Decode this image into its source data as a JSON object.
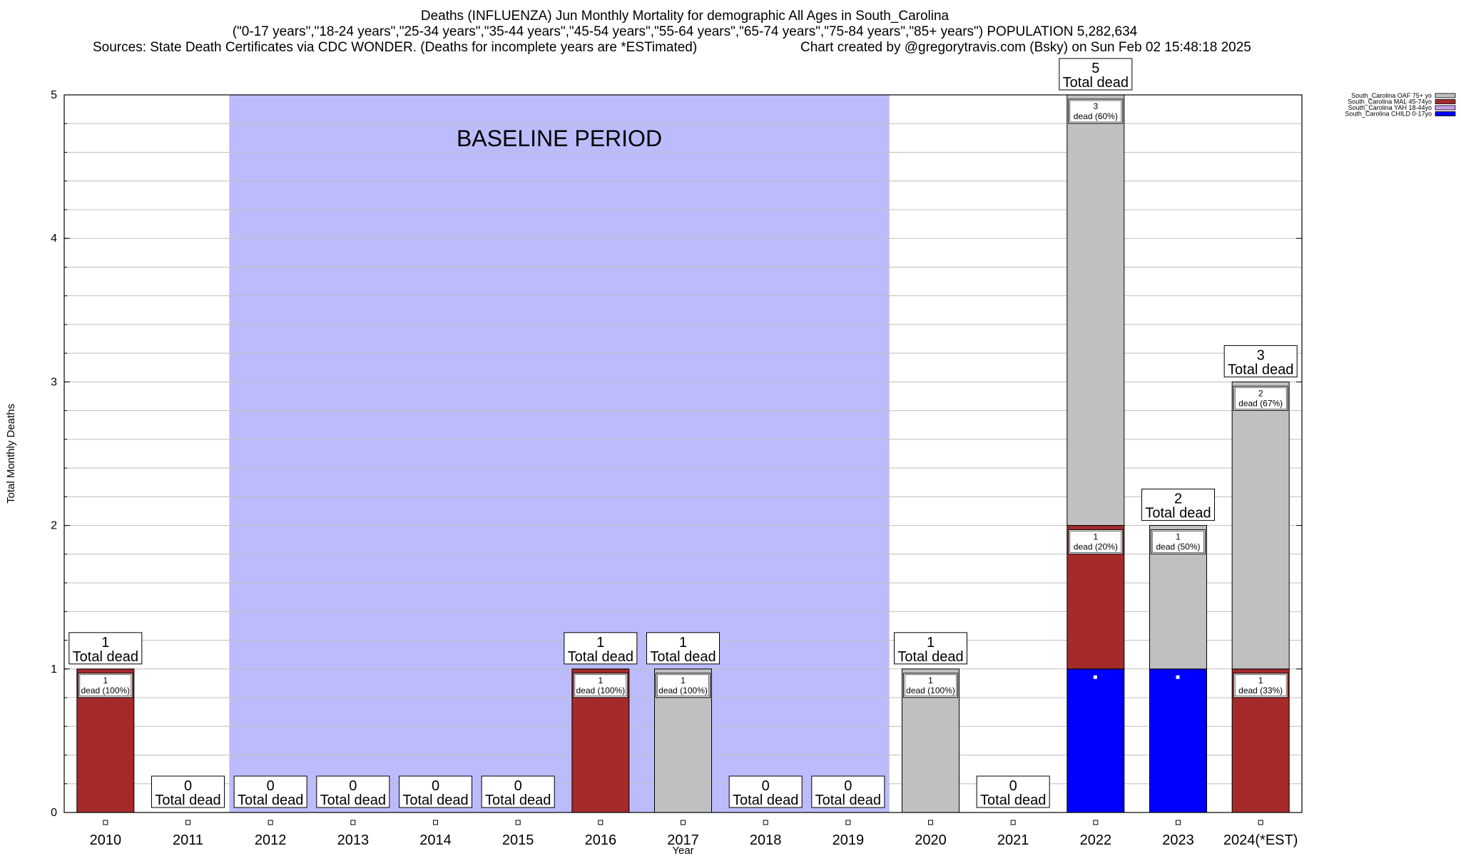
{
  "header": {
    "title": "Deaths (INFLUENZA) Jun Monthly Mortality for demographic All Ages in South_Carolina",
    "subtitle": "(\"0-17 years\",\"18-24 years\",\"25-34 years\",\"35-44 years\",\"45-54 years\",\"55-64 years\",\"65-74 years\",\"75-84 years\",\"85+ years\") POPULATION 5,282,634",
    "sources": "Sources: State Death Certificates via CDC WONDER. (Deaths for incomplete years are *ESTimated)",
    "credit": "Chart created by @gregorytravis.com (Bsky) on Sun Feb 02 15:48:18 2025"
  },
  "chart_data": {
    "type": "bar",
    "stacked": true,
    "categories": [
      "2010",
      "2011",
      "2012",
      "2013",
      "2014",
      "2015",
      "2016",
      "2017",
      "2018",
      "2019",
      "2020",
      "2021",
      "2022",
      "2023",
      "2024(*EST)"
    ],
    "series": [
      {
        "name": "South_Carolina CHILD 0-17yo",
        "color": "#0000ff",
        "values": [
          0,
          0,
          0,
          0,
          0,
          0,
          0,
          0,
          0,
          0,
          0,
          0,
          1,
          1,
          0
        ]
      },
      {
        "name": "South_Carolina YAH 18-44yo",
        "color": "#c8a0e8",
        "values": [
          0,
          0,
          0,
          0,
          0,
          0,
          0,
          0,
          0,
          0,
          0,
          0,
          0,
          0,
          0
        ]
      },
      {
        "name": "South_Carolina MAL 45-74yo",
        "color": "#a52a2a",
        "values": [
          1,
          0,
          0,
          0,
          0,
          0,
          1,
          0,
          0,
          0,
          0,
          0,
          1,
          0,
          1
        ]
      },
      {
        "name": "South_Carolina OAF 75+ yo",
        "color": "#c0c0c0",
        "values": [
          0,
          0,
          0,
          0,
          0,
          0,
          0,
          1,
          0,
          0,
          1,
          0,
          3,
          1,
          2
        ]
      }
    ],
    "totals": [
      1,
      0,
      0,
      0,
      0,
      0,
      1,
      1,
      0,
      0,
      1,
      0,
      5,
      2,
      3
    ],
    "total_label": "Total dead",
    "segment_labels": [
      {
        "category": "2010",
        "top": "1",
        "bottom": "dead (100%)"
      },
      {
        "category": "2016",
        "top": "1",
        "bottom": "dead (100%)"
      },
      {
        "category": "2017",
        "top": "1",
        "bottom": "dead (100%)"
      },
      {
        "category": "2020",
        "top": "1",
        "bottom": "dead (100%)"
      },
      {
        "category": "2022",
        "top": "3",
        "bottom": "dead (60%)"
      },
      {
        "category": "2022",
        "top": "1",
        "bottom": "dead (20%)"
      },
      {
        "category": "2023",
        "top": "1",
        "bottom": "dead (50%)"
      },
      {
        "category": "2024(*EST)",
        "top": "2",
        "bottom": "dead (67%)"
      },
      {
        "category": "2024(*EST)",
        "top": "1",
        "bottom": "dead (33%)"
      }
    ],
    "baseline": {
      "label": "BASELINE PERIOD",
      "from": "2012",
      "to": "2019",
      "color": "#bcbcfc"
    },
    "xlabel": "Year",
    "ylabel": "Total Monthly Deaths",
    "ylim": [
      0,
      5
    ],
    "yticks": [
      0,
      1,
      2,
      3,
      4,
      5
    ],
    "grid": true,
    "legend_position": "top-right"
  }
}
